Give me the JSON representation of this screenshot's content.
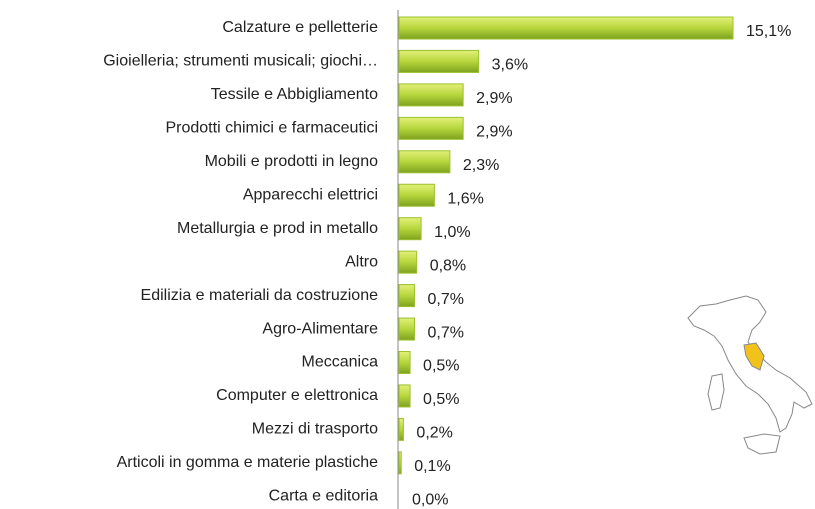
{
  "chart_data": {
    "type": "barh",
    "categories": [
      "Calzature e pelletterie",
      "Gioielleria; strumenti musicali; giochi…",
      "Tessile e Abbigliamento",
      "Prodotti chimici e farmaceutici",
      "Mobili e prodotti in legno",
      "Apparecchi elettrici",
      "Metallurgia e prod in metallo",
      "Altro",
      "Edilizia e materiali da costruzione",
      "Agro-Alimentare",
      "Meccanica",
      "Computer e elettronica",
      "Mezzi di trasporto",
      "Articoli in gomma e materie plastiche",
      "Carta e editoria"
    ],
    "values": [
      15.1,
      3.6,
      2.9,
      2.9,
      2.3,
      1.6,
      1.0,
      0.8,
      0.7,
      0.7,
      0.5,
      0.5,
      0.2,
      0.1,
      0.0
    ],
    "value_labels": [
      "15,1%",
      "3,6%",
      "2,9%",
      "2,9%",
      "2,3%",
      "1,6%",
      "1,0%",
      "0,8%",
      "0,7%",
      "0,7%",
      "0,5%",
      "0,5%",
      "0,2%",
      "0,1%",
      "0,0%"
    ],
    "color": "#9bc12e"
  }
}
